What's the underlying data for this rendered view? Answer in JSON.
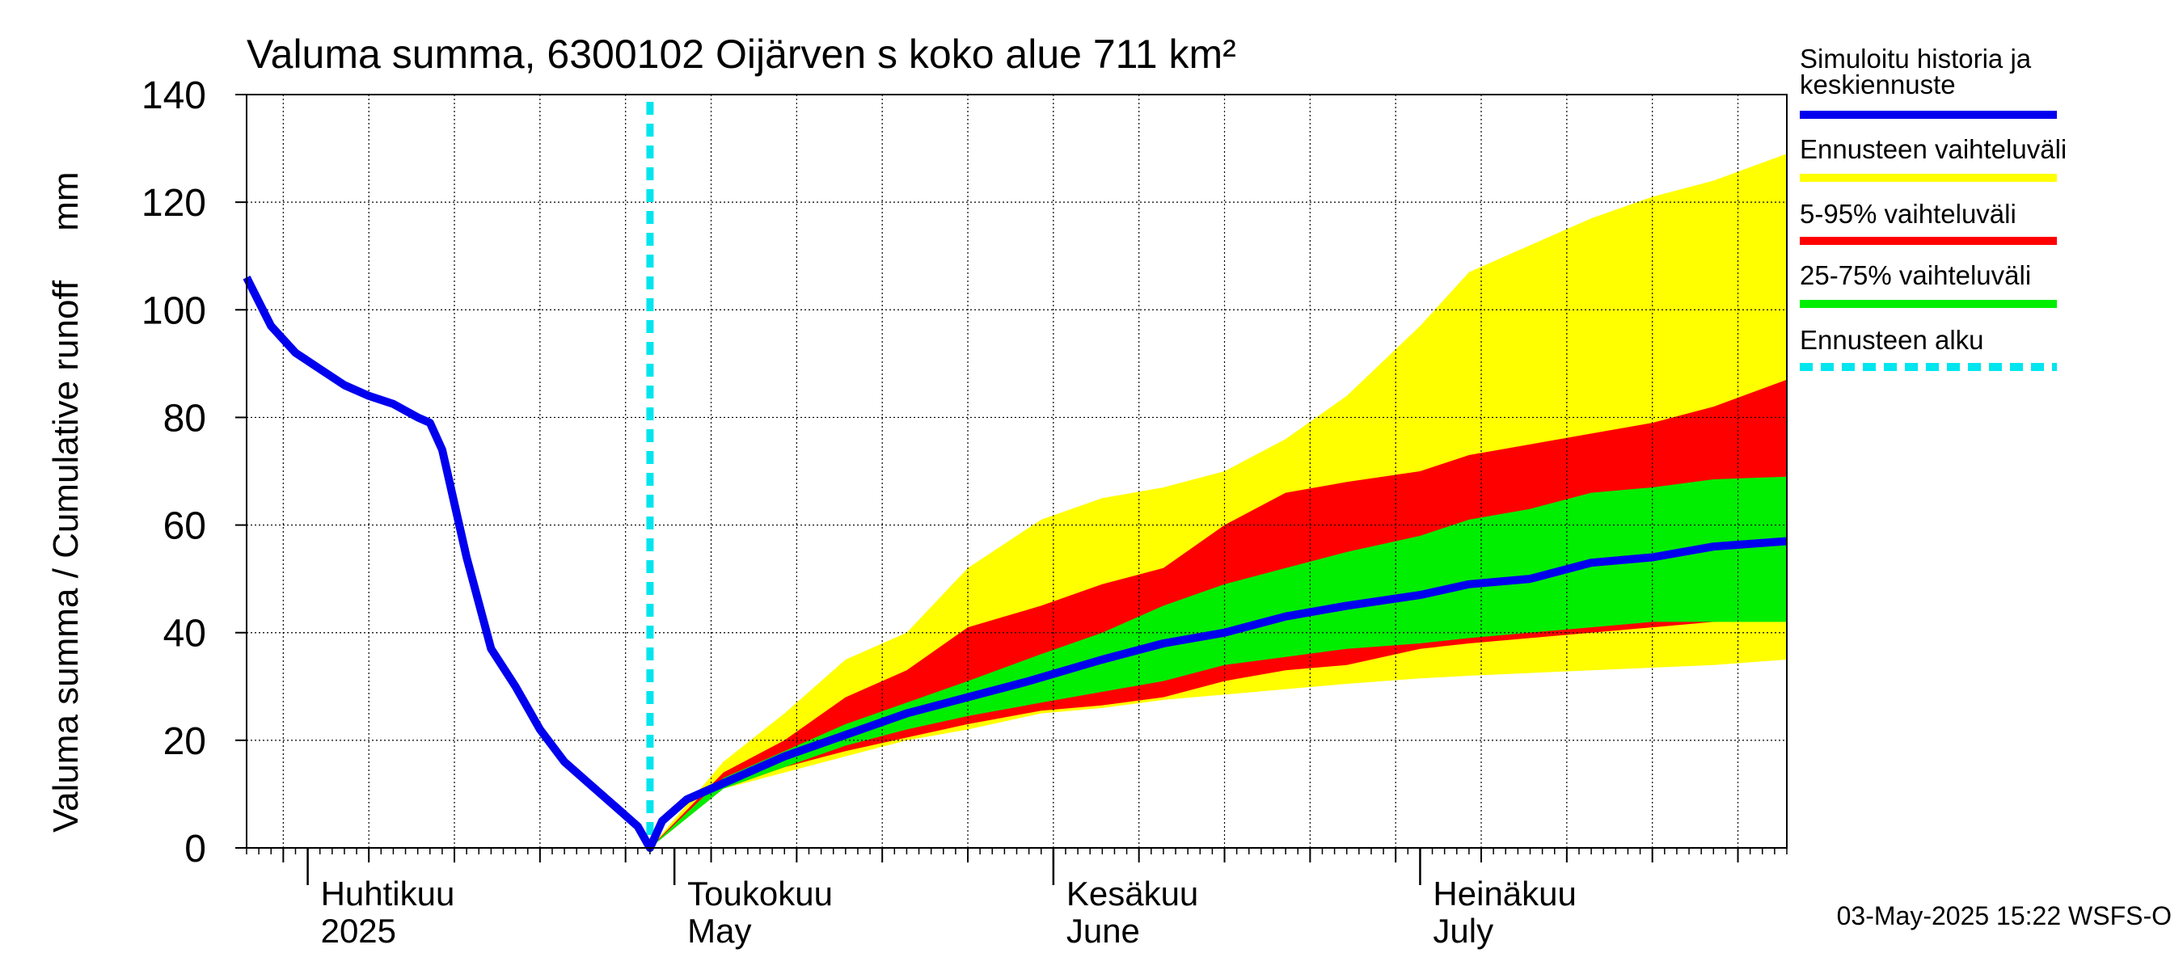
{
  "chart_data": {
    "type": "area",
    "title": "Valuma summa, 6300102 Oijärven s koko alue 711 km²",
    "ylabel": "Valuma summa / Cumulative runoff     mm",
    "ylim": [
      0,
      140
    ],
    "yticks": [
      0,
      20,
      40,
      60,
      80,
      100,
      120,
      140
    ],
    "xlim": [
      "2025-03-27",
      "2025-07-31"
    ],
    "grid": true,
    "legend_position": "right",
    "month_labels": [
      {
        "date": "2025-04-01",
        "fi": "Huhtikuu",
        "en": "2025"
      },
      {
        "date": "2025-05-01",
        "fi": "Toukokuu",
        "en": "May"
      },
      {
        "date": "2025-06-01",
        "fi": "Kesäkuu",
        "en": "June"
      },
      {
        "date": "2025-07-01",
        "fi": "Heinäkuu",
        "en": "July"
      }
    ],
    "forecast_start": "2025-04-29",
    "timestamp": "03-May-2025 15:22 WSFS-O",
    "legend": [
      {
        "label": "Simuloitu historia ja keskiennuste",
        "color": "#0000ee",
        "style": "solid"
      },
      {
        "label": "Ennusteen vaihteluväli",
        "color": "#ffff00",
        "style": "solid"
      },
      {
        "label": "5-95% vaihteluväli",
        "color": "#ff0000",
        "style": "solid"
      },
      {
        "label": "25-75% vaihteluväli",
        "color": "#00ee00",
        "style": "solid"
      },
      {
        "label": "Ennusteen alku",
        "color": "#00e5ee",
        "style": "dashed"
      }
    ],
    "series": [
      {
        "name": "Simuloitu historia ja keskiennuste",
        "color": "#0000ee",
        "points": [
          [
            "2025-03-27",
            106
          ],
          [
            "2025-03-29",
            97
          ],
          [
            "2025-03-31",
            92
          ],
          [
            "2025-04-02",
            89
          ],
          [
            "2025-04-04",
            86
          ],
          [
            "2025-04-06",
            84
          ],
          [
            "2025-04-08",
            82.5
          ],
          [
            "2025-04-10",
            80
          ],
          [
            "2025-04-11",
            79
          ],
          [
            "2025-04-12",
            74
          ],
          [
            "2025-04-14",
            54
          ],
          [
            "2025-04-16",
            37
          ],
          [
            "2025-04-18",
            30
          ],
          [
            "2025-04-20",
            22
          ],
          [
            "2025-04-22",
            16
          ],
          [
            "2025-04-24",
            12
          ],
          [
            "2025-04-26",
            8
          ],
          [
            "2025-04-28",
            4
          ],
          [
            "2025-04-29",
            0
          ],
          [
            "2025-04-30",
            5
          ],
          [
            "2025-05-02",
            9
          ],
          [
            "2025-05-05",
            12
          ],
          [
            "2025-05-10",
            17
          ],
          [
            "2025-05-15",
            21
          ],
          [
            "2025-05-20",
            25
          ],
          [
            "2025-05-25",
            28
          ],
          [
            "2025-05-30",
            31
          ],
          [
            "2025-06-05",
            35
          ],
          [
            "2025-06-10",
            38
          ],
          [
            "2025-06-15",
            40
          ],
          [
            "2025-06-20",
            43
          ],
          [
            "2025-06-25",
            45
          ],
          [
            "2025-07-01",
            47
          ],
          [
            "2025-07-05",
            49
          ],
          [
            "2025-07-10",
            50
          ],
          [
            "2025-07-15",
            53
          ],
          [
            "2025-07-20",
            54
          ],
          [
            "2025-07-25",
            56
          ],
          [
            "2025-07-31",
            57
          ]
        ]
      },
      {
        "name": "Ennusteen vaihteluväli",
        "color": "#ffff00",
        "dates": [
          "2025-04-29",
          "2025-05-05",
          "2025-05-10",
          "2025-05-15",
          "2025-05-20",
          "2025-05-25",
          "2025-05-31",
          "2025-06-05",
          "2025-06-10",
          "2025-06-15",
          "2025-06-20",
          "2025-06-25",
          "2025-07-01",
          "2025-07-05",
          "2025-07-10",
          "2025-07-15",
          "2025-07-20",
          "2025-07-25",
          "2025-07-31"
        ],
        "upper": [
          0,
          16,
          25,
          35,
          40,
          52,
          61,
          65,
          67,
          70,
          76,
          84,
          97,
          107,
          112,
          117,
          121,
          124,
          129
        ],
        "lower": [
          0,
          11,
          14,
          17,
          20,
          22,
          25,
          26,
          27.5,
          28.5,
          29.5,
          30.5,
          31.5,
          32,
          32.5,
          33,
          33.5,
          34,
          35
        ]
      },
      {
        "name": "5-95% vaihteluväli",
        "color": "#ff0000",
        "dates": [
          "2025-04-29",
          "2025-05-05",
          "2025-05-10",
          "2025-05-15",
          "2025-05-20",
          "2025-05-25",
          "2025-05-31",
          "2025-06-05",
          "2025-06-10",
          "2025-06-15",
          "2025-06-20",
          "2025-06-25",
          "2025-07-01",
          "2025-07-05",
          "2025-07-10",
          "2025-07-15",
          "2025-07-20",
          "2025-07-25",
          "2025-07-31"
        ],
        "upper": [
          0,
          14,
          20,
          28,
          33,
          41,
          45,
          49,
          52,
          60,
          66,
          68,
          70,
          73,
          75,
          77,
          79,
          82,
          87
        ],
        "lower": [
          0,
          11,
          15,
          18,
          20.5,
          23,
          25.5,
          26.5,
          28,
          31,
          33,
          34,
          37,
          38,
          39,
          40,
          41,
          42,
          43
        ]
      },
      {
        "name": "25-75% vaihteluväli",
        "color": "#00ee00",
        "dates": [
          "2025-04-29",
          "2025-05-05",
          "2025-05-10",
          "2025-05-15",
          "2025-05-20",
          "2025-05-25",
          "2025-05-31",
          "2025-06-05",
          "2025-06-10",
          "2025-06-15",
          "2025-06-20",
          "2025-06-25",
          "2025-07-01",
          "2025-07-05",
          "2025-07-10",
          "2025-07-15",
          "2025-07-20",
          "2025-07-25",
          "2025-07-31"
        ],
        "upper": [
          0,
          13,
          18,
          23,
          27,
          31,
          36,
          40,
          45,
          49,
          52,
          55,
          58,
          61,
          63,
          66,
          67,
          68.5,
          69
        ],
        "lower": [
          0,
          11,
          15,
          19,
          22,
          24.5,
          27,
          29,
          31,
          34,
          35.5,
          37,
          38,
          39,
          40,
          41,
          42,
          42,
          42
        ]
      }
    ]
  }
}
